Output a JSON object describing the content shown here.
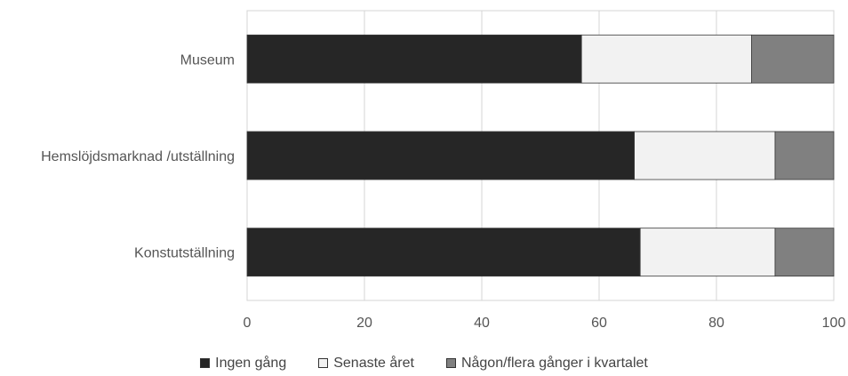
{
  "chart_data": {
    "type": "bar",
    "orientation": "horizontal",
    "stacked": true,
    "categories": [
      "Museum",
      "Hemslöjdsmarknad /utställning",
      "Konstutställning"
    ],
    "series": [
      {
        "name": "Ingen gång",
        "values": [
          57,
          66,
          67
        ],
        "color": "#262626"
      },
      {
        "name": "Senaste året",
        "values": [
          29,
          24,
          23
        ],
        "color": "#f2f2f2"
      },
      {
        "name": "Någon/flera gånger i kvartalet",
        "values": [
          14,
          10,
          10
        ],
        "color": "#808080"
      }
    ],
    "xlim": [
      0,
      100
    ],
    "xticks": [
      0,
      20,
      40,
      60,
      80,
      100
    ],
    "grid": true,
    "legend_position": "bottom",
    "title": "",
    "xlabel": "",
    "ylabel": ""
  }
}
